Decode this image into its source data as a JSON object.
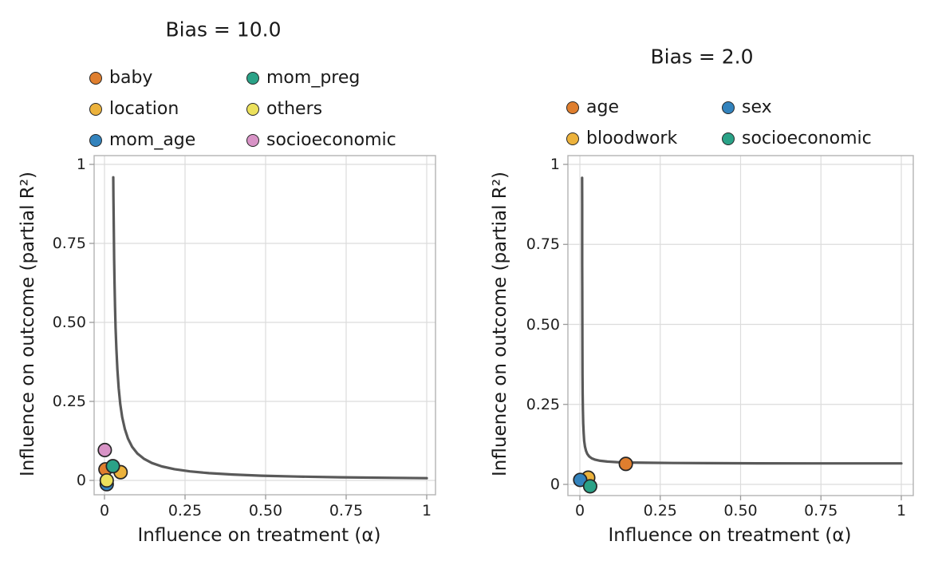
{
  "figure": {
    "background": "#ffffff",
    "colors": {
      "curve": "#595959",
      "grid": "#dcdcdc",
      "spine": "#b3b3b3",
      "tick": "#999999",
      "text": "#1a1a1a",
      "marker_edge": "#262626"
    }
  },
  "chart_data": [
    {
      "type": "scatter",
      "title": "Bias = 10.0",
      "xlabel": "Influence on treatment (α)",
      "ylabel": "Influence on outcome (partial R²)",
      "xlim": [
        -0.03,
        1.03
      ],
      "ylim": [
        -0.045,
        1.03
      ],
      "xticks": [
        0,
        0.25,
        0.5,
        0.75,
        1
      ],
      "xtick_labels": [
        "0",
        "0.25",
        "0.50",
        "0.75",
        "1"
      ],
      "yticks": [
        0,
        0.25,
        0.5,
        0.75,
        1
      ],
      "ytick_labels": [
        "0",
        "0.25",
        "0.50",
        "0.75",
        "1"
      ],
      "grid": true,
      "legend_position": "above-plot, 2 columns",
      "legend": [
        {
          "label": "baby",
          "color": "#DF7E2E"
        },
        {
          "label": "location",
          "color": "#ECB23C"
        },
        {
          "label": "mom_age",
          "color": "#3383BD"
        },
        {
          "label": "mom_preg",
          "color": "#2AA287"
        },
        {
          "label": "others",
          "color": "#ECE15C"
        },
        {
          "label": "socioeconomic",
          "color": "#D893C6"
        }
      ],
      "points": [
        {
          "label": "baby",
          "x": 0.003,
          "y": 0.035,
          "color": "#DF7E2E"
        },
        {
          "label": "location",
          "x": 0.05,
          "y": 0.026,
          "color": "#ECB23C"
        },
        {
          "label": "mom_age",
          "x": 0.007,
          "y": -0.012,
          "color": "#3383BD"
        },
        {
          "label": "mom_preg",
          "x": 0.026,
          "y": 0.045,
          "color": "#2AA287"
        },
        {
          "label": "others",
          "x": 0.007,
          "y": 0.0,
          "color": "#ECE15C"
        },
        {
          "label": "socioeconomic",
          "x": 0.001,
          "y": 0.096,
          "color": "#D893C6"
        }
      ],
      "curve": {
        "description": "bias boundary hyperbola, approx y = 0.007/(x-0.02)",
        "color": "#595959",
        "points": [
          [
            0.0273,
            0.959
          ],
          [
            0.0278,
            0.897
          ],
          [
            0.0284,
            0.833
          ],
          [
            0.0291,
            0.769
          ],
          [
            0.03,
            0.7
          ],
          [
            0.0312,
            0.625
          ],
          [
            0.0327,
            0.551
          ],
          [
            0.0345,
            0.483
          ],
          [
            0.0368,
            0.417
          ],
          [
            0.04,
            0.35
          ],
          [
            0.044,
            0.292
          ],
          [
            0.049,
            0.241
          ],
          [
            0.055,
            0.2
          ],
          [
            0.063,
            0.163
          ],
          [
            0.073,
            0.132
          ],
          [
            0.086,
            0.106
          ],
          [
            0.102,
            0.0854
          ],
          [
            0.122,
            0.0686
          ],
          [
            0.147,
            0.0551
          ],
          [
            0.178,
            0.0443
          ],
          [
            0.217,
            0.0355
          ],
          [
            0.265,
            0.0286
          ],
          [
            0.324,
            0.023
          ],
          [
            0.397,
            0.0186
          ],
          [
            0.487,
            0.015
          ],
          [
            0.598,
            0.0121
          ],
          [
            0.735,
            0.0098
          ],
          [
            0.9,
            0.008
          ],
          [
            1.0,
            0.0071
          ]
        ]
      }
    },
    {
      "type": "scatter",
      "title": "Bias = 2.0",
      "xlabel": "Influence on treatment (α)",
      "ylabel": "Influence on outcome (partial R²)",
      "xlim": [
        -0.03,
        1.03
      ],
      "ylim": [
        -0.045,
        1.03
      ],
      "xticks": [
        0,
        0.25,
        0.5,
        0.75,
        1
      ],
      "xtick_labels": [
        "0",
        "0.25",
        "0.50",
        "0.75",
        "1"
      ],
      "yticks": [
        0,
        0.25,
        0.5,
        0.75,
        1
      ],
      "ytick_labels": [
        "0",
        "0.25",
        "0.50",
        "0.75",
        "1"
      ],
      "grid": true,
      "legend_position": "above-plot, 2 columns",
      "legend": [
        {
          "label": "age",
          "color": "#DF7E2E"
        },
        {
          "label": "bloodwork",
          "color": "#ECB23C"
        },
        {
          "label": "sex",
          "color": "#3383BD"
        },
        {
          "label": "socioeconomic",
          "color": "#2AA287"
        }
      ],
      "points": [
        {
          "label": "age",
          "x": 0.143,
          "y": 0.064,
          "color": "#DF7E2E"
        },
        {
          "label": "bloodwork",
          "x": 0.026,
          "y": 0.021,
          "color": "#ECB23C"
        },
        {
          "label": "sex",
          "x": 0.001,
          "y": 0.014,
          "color": "#3383BD"
        },
        {
          "label": "socioeconomic",
          "x": 0.032,
          "y": -0.006,
          "color": "#2AA287"
        }
      ],
      "curve": {
        "description": "bias boundary hyperbola, approx y = 0.0005/(x-0.0065)+0.065",
        "color": "#595959",
        "points": [
          [
            0.00706,
            0.958
          ],
          [
            0.00712,
            0.871
          ],
          [
            0.0072,
            0.779
          ],
          [
            0.0073,
            0.69
          ],
          [
            0.0074,
            0.621
          ],
          [
            0.0076,
            0.52
          ],
          [
            0.0079,
            0.422
          ],
          [
            0.0083,
            0.343
          ],
          [
            0.0088,
            0.282
          ],
          [
            0.0095,
            0.232
          ],
          [
            0.0105,
            0.19
          ],
          [
            0.0118,
            0.159
          ],
          [
            0.0135,
            0.136
          ],
          [
            0.016,
            0.118
          ],
          [
            0.019,
            0.105
          ],
          [
            0.023,
            0.0953
          ],
          [
            0.029,
            0.0872
          ],
          [
            0.037,
            0.0814
          ],
          [
            0.048,
            0.077
          ],
          [
            0.063,
            0.0738
          ],
          [
            0.085,
            0.0714
          ],
          [
            0.115,
            0.0696
          ],
          [
            0.155,
            0.0684
          ],
          [
            0.21,
            0.0675
          ],
          [
            0.29,
            0.0668
          ],
          [
            0.4,
            0.0663
          ],
          [
            0.55,
            0.0659
          ],
          [
            0.72,
            0.0657
          ],
          [
            0.87,
            0.0656
          ],
          [
            1.0,
            0.0655
          ]
        ]
      }
    }
  ]
}
